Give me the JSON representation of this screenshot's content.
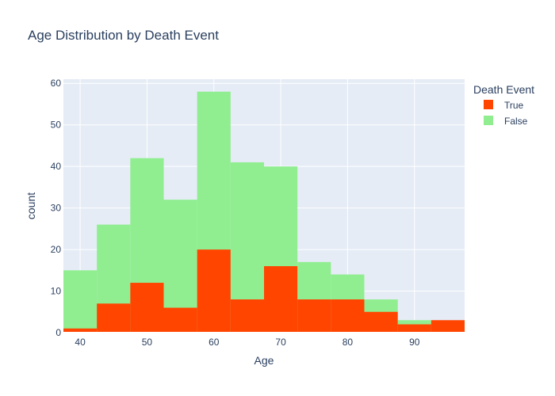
{
  "chart_data": {
    "type": "bar",
    "title": "Age Distribution by Death Event",
    "xlabel": "Age",
    "ylabel": "count",
    "xlim": [
      37.5,
      97.5
    ],
    "ylim": [
      0,
      61
    ],
    "x_ticks": [
      40,
      50,
      60,
      70,
      80,
      90
    ],
    "y_ticks": [
      0,
      10,
      20,
      30,
      40,
      50,
      60
    ],
    "grid": true,
    "barmode": "overlay",
    "bin_edges": [
      37.5,
      42.5,
      47.5,
      52.5,
      57.5,
      62.5,
      67.5,
      72.5,
      77.5,
      82.5,
      87.5,
      92.5,
      97.5
    ],
    "series": [
      {
        "name": "True",
        "color": "#ff4500",
        "values": [
          1,
          7,
          12,
          6,
          20,
          8,
          16,
          8,
          8,
          5,
          2,
          3
        ]
      },
      {
        "name": "False",
        "color": "#90ee90",
        "values": [
          15,
          26,
          42,
          32,
          58,
          41,
          40,
          17,
          14,
          8,
          3,
          0
        ]
      }
    ],
    "legend": {
      "title": "Death Event",
      "placement": "top-right"
    },
    "plot_background": "#e5ecf6"
  }
}
